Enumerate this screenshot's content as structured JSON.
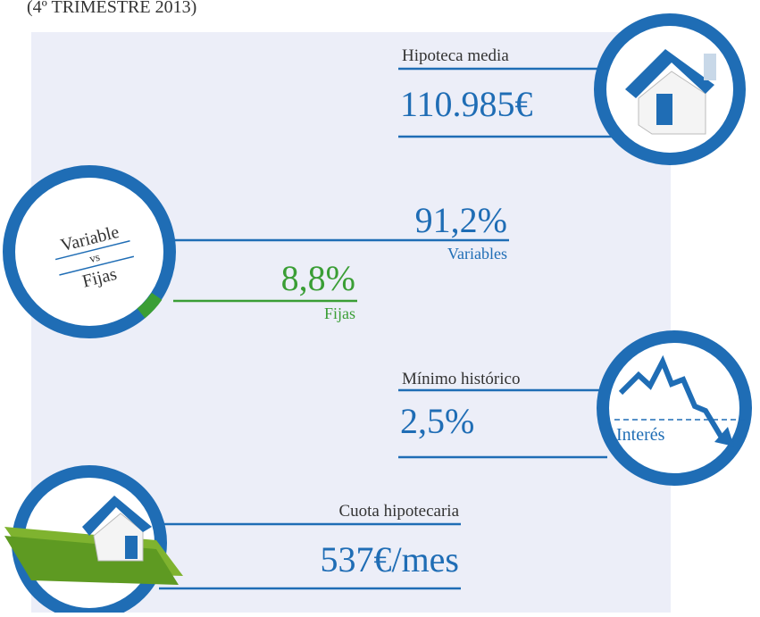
{
  "header": {
    "period": "(4º TRIMESTRE 2013)"
  },
  "average_mortgage": {
    "label": "Hipoteca media",
    "value": "110.985€"
  },
  "rate_type": {
    "label_top": "Variable",
    "label_mid": "vs",
    "label_bottom": "Fijas",
    "variable": {
      "value": "91,2%",
      "label": "Variables"
    },
    "fixed": {
      "value": "8,8%",
      "label": "Fijas"
    }
  },
  "interest": {
    "label": "Mínimo histórico",
    "value": "2,5%",
    "icon_label": "Interés"
  },
  "monthly_payment": {
    "label": "Cuota hipotecaria",
    "value": "537€/mes"
  }
}
